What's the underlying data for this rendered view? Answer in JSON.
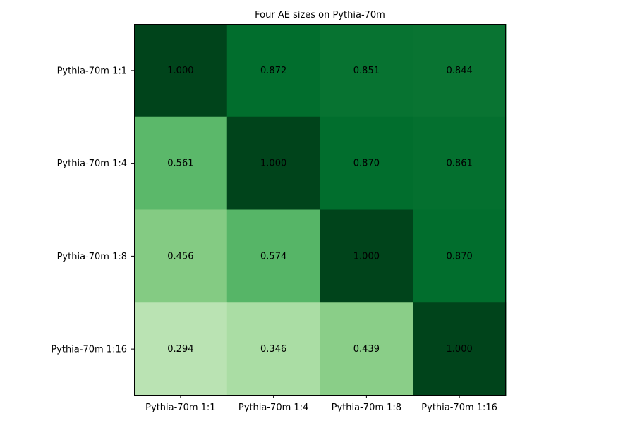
{
  "chart_data": {
    "type": "heatmap",
    "title": "Four AE sizes on Pythia-70m",
    "xlabel": "",
    "ylabel": "",
    "x_categories": [
      "Pythia-70m 1:1",
      "Pythia-70m 1:4",
      "Pythia-70m 1:8",
      "Pythia-70m 1:16"
    ],
    "y_categories": [
      "Pythia-70m 1:1",
      "Pythia-70m 1:4",
      "Pythia-70m 1:8",
      "Pythia-70m 1:16"
    ],
    "values": [
      [
        1.0,
        0.872,
        0.851,
        0.844
      ],
      [
        0.561,
        1.0,
        0.87,
        0.861
      ],
      [
        0.456,
        0.574,
        1.0,
        0.87
      ],
      [
        0.294,
        0.346,
        0.439,
        1.0
      ]
    ],
    "value_labels": [
      [
        "1.000",
        "0.872",
        "0.851",
        "0.844"
      ],
      [
        "0.561",
        "1.000",
        "0.870",
        "0.861"
      ],
      [
        "0.456",
        "0.574",
        "1.000",
        "0.870"
      ],
      [
        "0.294",
        "0.346",
        "0.439",
        "1.000"
      ]
    ],
    "colormap": "Greens",
    "color_range": [
      0,
      1
    ],
    "colorbar": false,
    "grid": false
  }
}
